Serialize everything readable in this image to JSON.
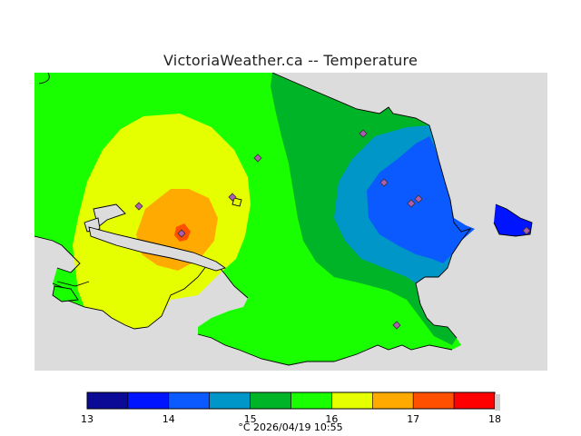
{
  "title": "VictoriaWeather.ca -- Temperature",
  "colors": {
    "land_fill_16_17": "#e6ff00",
    "land_fill_15_16": "#19ff00",
    "land_fill_14_15": "#00b428",
    "water_background": "#dcdcdc",
    "band_13_135": "#0a0a96",
    "band_135_14": "#0014ff",
    "band_14_145": "#0a5aff",
    "band_145_15": "#0096c8",
    "band_15_155": "#00b428",
    "band_155_16": "#19ff00",
    "band_16_165": "#e6ff00",
    "band_165_17": "#ffaa00",
    "band_17_175": "#ff5000",
    "band_175_18": "#ff0000"
  },
  "legend": {
    "min": 13,
    "max": 18,
    "bands": [
      {
        "from": 13.0,
        "to": 13.5,
        "color": "#0a0a96"
      },
      {
        "from": 13.5,
        "to": 14.0,
        "color": "#0014ff"
      },
      {
        "from": 14.0,
        "to": 14.5,
        "color": "#0a5aff"
      },
      {
        "from": 14.5,
        "to": 15.0,
        "color": "#0096c8"
      },
      {
        "from": 15.0,
        "to": 15.5,
        "color": "#00b428"
      },
      {
        "from": 15.5,
        "to": 16.0,
        "color": "#19ff00"
      },
      {
        "from": 16.0,
        "to": 16.5,
        "color": "#e6ff00"
      },
      {
        "from": 16.5,
        "to": 17.0,
        "color": "#ffaa00"
      },
      {
        "from": 17.0,
        "to": 17.5,
        "color": "#ff5000"
      },
      {
        "from": 17.5,
        "to": 18.0,
        "color": "#ff0000"
      }
    ],
    "tick_labels": [
      "13",
      "14",
      "15",
      "16",
      "17",
      "18"
    ]
  },
  "footer": "°C  2026/04/19 10:55",
  "station_markers_count": 10
}
